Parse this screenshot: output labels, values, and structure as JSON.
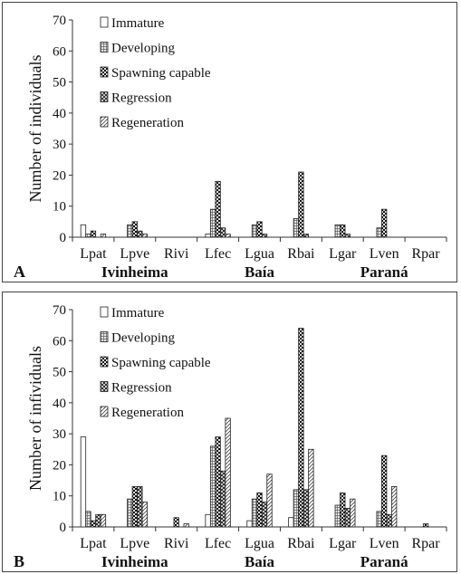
{
  "patterns": {
    "Immature": "none",
    "Developing": "grid",
    "Spawning capable": "checker",
    "Regression": "cross",
    "Regeneration": "diag"
  },
  "chart_data": [
    {
      "type": "bar",
      "panel_label": "A",
      "ylabel": "Number of individuals",
      "ylim": [
        0,
        70
      ],
      "yticks": [
        0,
        10,
        20,
        30,
        40,
        50,
        60,
        70
      ],
      "legend_position": "top-left",
      "grid": false,
      "categories": [
        "Lpat",
        "Lpve",
        "Rivi",
        "Lfec",
        "Lgua",
        "Rbai",
        "Lgar",
        "Lven",
        "Rpar"
      ],
      "groups": [
        {
          "name": "Ivinheima",
          "categories": [
            "Lpat",
            "Lpve",
            "Rivi"
          ]
        },
        {
          "name": "Baía",
          "categories": [
            "Lfec",
            "Lgua",
            "Rbai"
          ]
        },
        {
          "name": "Paraná",
          "categories": [
            "Lgar",
            "Lven",
            "Rpar"
          ]
        }
      ],
      "series": [
        {
          "name": "Immature",
          "values": [
            4,
            0,
            0,
            1,
            0,
            0,
            0,
            0,
            0
          ]
        },
        {
          "name": "Developing",
          "values": [
            1,
            4,
            0,
            9,
            4,
            6,
            4,
            3,
            0
          ]
        },
        {
          "name": "Spawning capable",
          "values": [
            2,
            5,
            0,
            18,
            5,
            21,
            4,
            9,
            0
          ]
        },
        {
          "name": "Regression",
          "values": [
            0,
            2,
            0,
            3,
            1,
            1,
            1,
            0,
            0
          ]
        },
        {
          "name": "Regeneration",
          "values": [
            1,
            1,
            0,
            1,
            0,
            0,
            0,
            0,
            0
          ]
        }
      ]
    },
    {
      "type": "bar",
      "panel_label": "B",
      "ylabel": "Number of infividuals",
      "ylim": [
        0,
        70
      ],
      "yticks": [
        0,
        10,
        20,
        30,
        40,
        50,
        60,
        70
      ],
      "legend_position": "top-left",
      "grid": false,
      "categories": [
        "Lpat",
        "Lpve",
        "Rivi",
        "Lfec",
        "Lgua",
        "Rbai",
        "Lgar",
        "Lven",
        "Rpar"
      ],
      "groups": [
        {
          "name": "Ivinheima",
          "categories": [
            "Lpat",
            "Lpve",
            "Rivi"
          ]
        },
        {
          "name": "Baía",
          "categories": [
            "Lfec",
            "Lgua",
            "Rbai"
          ]
        },
        {
          "name": "Paraná",
          "categories": [
            "Lgar",
            "Lven",
            "Rpar"
          ]
        }
      ],
      "series": [
        {
          "name": "Immature",
          "values": [
            29,
            0,
            0,
            4,
            2,
            3,
            0,
            0,
            0
          ]
        },
        {
          "name": "Developing",
          "values": [
            5,
            9,
            0,
            26,
            9,
            12,
            7,
            5,
            0
          ]
        },
        {
          "name": "Spawning capable",
          "values": [
            2,
            13,
            3,
            29,
            11,
            64,
            11,
            23,
            1
          ]
        },
        {
          "name": "Regression",
          "values": [
            4,
            13,
            0,
            18,
            8,
            12,
            6,
            4,
            0
          ]
        },
        {
          "name": "Regeneration",
          "values": [
            4,
            8,
            1,
            35,
            17,
            25,
            9,
            13,
            0
          ]
        }
      ]
    }
  ]
}
